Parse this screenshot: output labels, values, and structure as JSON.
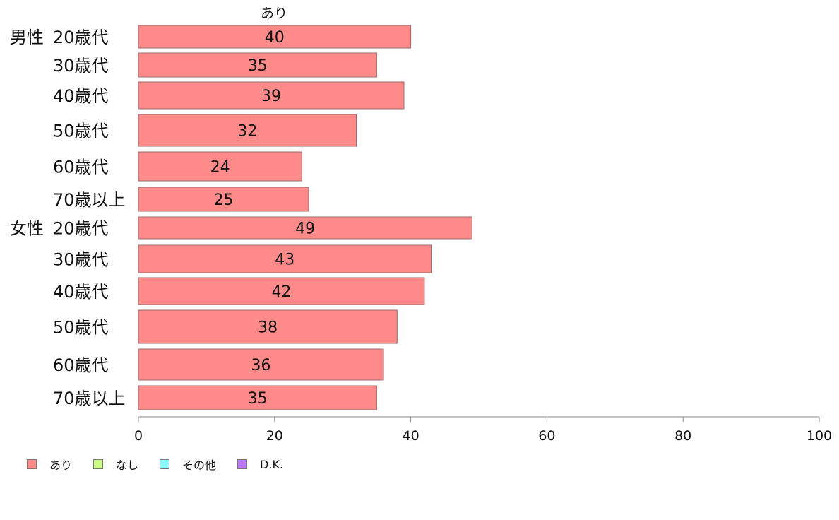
{
  "chart_data": {
    "type": "bar",
    "orientation": "horizontal",
    "title": "あり",
    "xlim": [
      0,
      100
    ],
    "xticks": [
      "0",
      "20",
      "40",
      "60",
      "80",
      "100"
    ],
    "groups": [
      "男性",
      "女性"
    ],
    "categories": [
      "20歳代",
      "30歳代",
      "40歳代",
      "50歳代",
      "60歳代",
      "70歳以上",
      "20歳代",
      "30歳代",
      "40歳代",
      "50歳代",
      "60歳代",
      "70歳以上"
    ],
    "series": [
      {
        "name": "あり",
        "values": [
          40,
          35,
          39,
          32,
          24,
          25,
          49,
          43,
          42,
          38,
          36,
          35
        ]
      }
    ],
    "value_labels": [
      "40",
      "35",
      "39",
      "32",
      "24",
      "25",
      "49",
      "43",
      "42",
      "38",
      "36",
      "35"
    ],
    "legend": [
      {
        "label": "あり",
        "color": "#ff8a8a"
      },
      {
        "label": "なし",
        "color": "#ccff88"
      },
      {
        "label": "その他",
        "color": "#88ffff"
      },
      {
        "label": "D.K.",
        "color": "#bb77ff"
      }
    ],
    "legend_position": "bottom-left",
    "grid": false
  }
}
